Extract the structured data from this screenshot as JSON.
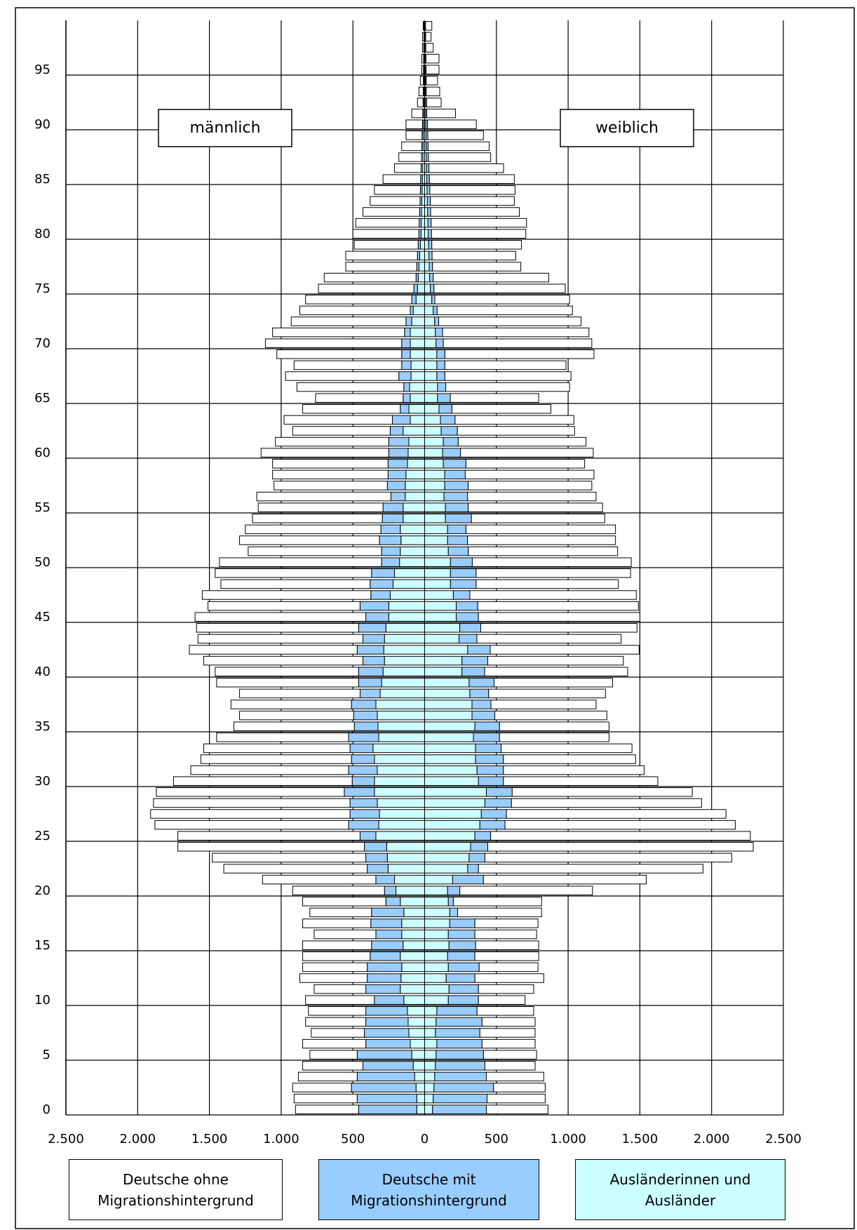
{
  "chart_data": {
    "type": "pyramid",
    "sex_labels": [
      "männlich",
      "weiblich"
    ],
    "ylim": [
      0,
      100
    ],
    "yticks": [
      0,
      5,
      10,
      15,
      20,
      25,
      30,
      35,
      40,
      45,
      50,
      55,
      60,
      65,
      70,
      75,
      80,
      85,
      90,
      95
    ],
    "xlim": [
      -2500,
      2500
    ],
    "xticks": [
      {
        "value": -2500,
        "label": "2.500"
      },
      {
        "value": -2000,
        "label": "2.000"
      },
      {
        "value": -1500,
        "label": "1.500"
      },
      {
        "value": -1000,
        "label": "1.000"
      },
      {
        "value": -500,
        "label": "500"
      },
      0,
      500,
      {
        "value": 1000,
        "label": "1.000"
      },
      {
        "value": 1500,
        "label": "1.500"
      },
      {
        "value": 2000,
        "label": "2.000"
      },
      {
        "value": 2500,
        "label": "2.500"
      }
    ],
    "grid": true,
    "series": [
      {
        "name": "Deutsche ohne Migrationshintergrund",
        "color": "#ffffff",
        "values": [
          [
            440,
            440,
            410,
            410,
            420,
            330,
            440,
            370,
            420,
            400,
            480,
            360,
            470,
            450,
            470,
            480,
            430,
            475,
            430,
            580,
            640,
            790,
            1000,
            1070,
            1300,
            1270,
            1350,
            1390,
            1370,
            1310,
            1245,
            1100,
            1050,
            1020,
            920,
            840,
            795,
            840,
            840,
            990,
            1000,
            1110,
            1170,
            1150,
            1130,
            1190,
            1060,
            1175,
            1040,
            1090,
            1130,
            930,
            975,
            945,
            905,
            870,
            935,
            790,
            805,
            805,
            890,
            790,
            680,
            755,
            680,
            610,
            745,
            790,
            750,
            870,
            950,
            920,
            800,
            770,
            740,
            665,
            640,
            495,
            500,
            445,
            460,
            442,
            395,
            348,
            320,
            262,
            185,
            158,
            140,
            112,
            115,
            77,
            39,
            30,
            21,
            12,
            13,
            9,
            10,
            5
          ],
          [
            430,
            405,
            360,
            400,
            350,
            370,
            370,
            385,
            370,
            395,
            325,
            385,
            480,
            410,
            445,
            440,
            430,
            440,
            585,
            615,
            925,
            1135,
            1565,
            1720,
            1850,
            1810,
            1605,
            1530,
            1325,
            1255,
            1076,
            981,
            921,
            912,
            763,
            763,
            781,
            733,
            814,
            826,
            997,
            945,
            1038,
            1006,
            1089,
            1125,
            1120,
            1160,
            991,
            1076,
            1108,
            1041,
            1031,
            1042,
            929,
            936,
            896,
            861,
            897,
            827,
            925,
            891,
            817,
            828,
            690,
            616,
            863,
            879,
            844,
            1039,
            1035,
            1020,
            992,
            943,
            939,
            915,
            805,
            615,
            583,
            625,
            657,
            665,
            618,
            585,
            594,
            592,
            520,
            433,
            426,
            388,
            340,
            200,
            101,
            93,
            79,
            90,
            91,
            52,
            38,
            44
          ]
        ]
      },
      {
        "name": "Deutsche mit Migrationshintergrund",
        "color": "#99ccff",
        "values": [
          [
            405,
            415,
            450,
            400,
            350,
            380,
            310,
            310,
            295,
            290,
            205,
            240,
            235,
            240,
            210,
            220,
            180,
            215,
            225,
            100,
            80,
            130,
            145,
            150,
            155,
            110,
            210,
            205,
            190,
            210,
            155,
            200,
            160,
            160,
            210,
            165,
            165,
            170,
            140,
            160,
            170,
            150,
            185,
            150,
            190,
            160,
            200,
            135,
            160,
            160,
            125,
            130,
            150,
            135,
            145,
            140,
            100,
            125,
            125,
            135,
            135,
            140,
            90,
            125,
            60,
            50,
            40,
            85,
            65,
            60,
            60,
            40,
            40,
            20,
            30,
            25,
            15,
            15,
            15,
            15,
            15,
            14,
            13,
            12,
            12,
            12,
            11,
            10,
            9,
            8,
            7,
            6,
            5,
            5,
            4,
            4,
            3,
            3,
            2,
            2
          ],
          [
            375,
            375,
            415,
            360,
            345,
            330,
            315,
            310,
            320,
            280,
            210,
            205,
            200,
            215,
            190,
            185,
            185,
            175,
            55,
            35,
            85,
            215,
            75,
            110,
            120,
            110,
            175,
            175,
            185,
            180,
            174,
            184,
            194,
            178,
            182,
            172,
            159,
            132,
            131,
            174,
            158,
            180,
            157,
            124,
            146,
            155,
            150,
            115,
            179,
            179,
            152,
            139,
            139,
            128,
            181,
            159,
            164,
            164,
            143,
            158,
            125,
            104,
            113,
            102,
            90,
            89,
            57,
            56,
            56,
            56,
            50,
            50,
            28,
            27,
            21,
            25,
            25,
            23,
            22,
            22,
            23,
            22,
            21,
            21,
            19,
            18,
            17,
            15,
            13,
            12,
            12,
            8,
            8,
            7,
            6,
            6,
            5,
            5,
            4,
            3
          ]
        ]
      },
      {
        "name": "Ausländerinnen und Ausländer",
        "color": "#ccffff",
        "values": [
          [
            55,
            55,
            60,
            70,
            80,
            90,
            100,
            110,
            115,
            120,
            145,
            170,
            165,
            160,
            170,
            150,
            160,
            160,
            145,
            170,
            200,
            210,
            255,
            260,
            265,
            340,
            320,
            315,
            330,
            350,
            350,
            330,
            350,
            360,
            320,
            325,
            330,
            340,
            310,
            300,
            290,
            280,
            285,
            280,
            270,
            250,
            250,
            240,
            220,
            210,
            175,
            170,
            165,
            170,
            150,
            150,
            135,
            135,
            130,
            120,
            115,
            110,
            150,
            100,
            110,
            100,
            105,
            95,
            95,
            100,
            100,
            100,
            90,
            80,
            60,
            50,
            45,
            40,
            35,
            30,
            25,
            24,
            22,
            20,
            18,
            16,
            14,
            12,
            11,
            10,
            8,
            7,
            6,
            5,
            5,
            4,
            4,
            3,
            3,
            3
          ],
          [
            55,
            60,
            65,
            70,
            75,
            80,
            85,
            75,
            80,
            85,
            165,
            170,
            150,
            165,
            160,
            170,
            165,
            175,
            175,
            165,
            160,
            195,
            300,
            310,
            320,
            350,
            385,
            395,
            420,
            430,
            375,
            365,
            355,
            355,
            340,
            350,
            330,
            330,
            315,
            310,
            260,
            260,
            300,
            240,
            245,
            220,
            220,
            200,
            180,
            180,
            180,
            165,
            160,
            160,
            145,
            145,
            135,
            140,
            140,
            130,
            125,
            130,
            115,
            110,
            100,
            90,
            90,
            85,
            85,
            85,
            80,
            75,
            70,
            60,
            50,
            40,
            35,
            32,
            30,
            28,
            25,
            23,
            21,
            19,
            17,
            15,
            13,
            12,
            11,
            10,
            8,
            7,
            6,
            5,
            5,
            4,
            4,
            3,
            3,
            3
          ]
        ]
      }
    ]
  }
}
